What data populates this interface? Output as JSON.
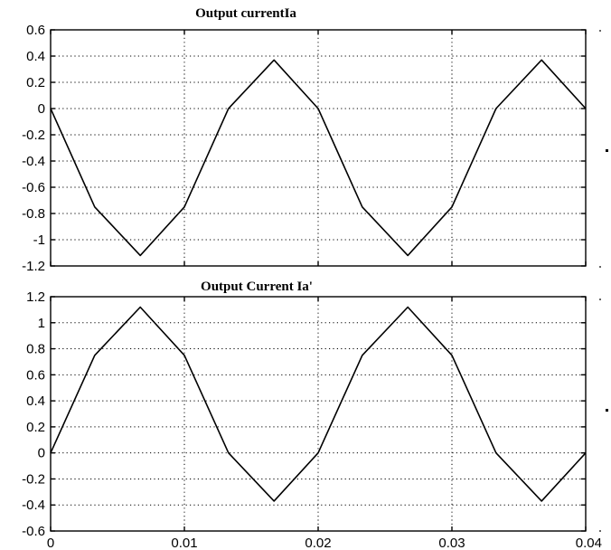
{
  "chart_data": [
    {
      "type": "line",
      "title": "Output currentIa",
      "xlabel": "",
      "ylabel": "",
      "xlim": [
        0,
        0.04
      ],
      "ylim": [
        -1.2,
        0.6
      ],
      "grid": true,
      "xticks": [
        0,
        0.01,
        0.02,
        0.03,
        0.04
      ],
      "xtick_labels": [
        "",
        "",
        "",
        "",
        ""
      ],
      "yticks": [
        0.6,
        0.4,
        0.2,
        0,
        -0.2,
        -0.4,
        -0.6,
        -0.8,
        -1,
        -1.2
      ],
      "ytick_labels": [
        "0.6",
        "0.4",
        "0.2",
        "0",
        "-0.2",
        "-0.4",
        "-0.6",
        "-0.8",
        "-1",
        "-1.2"
      ],
      "series": [
        {
          "x": [
            0,
            0.0033,
            0.0067,
            0.01,
            0.0133,
            0.0167,
            0.02,
            0.0233,
            0.0267,
            0.03,
            0.0333,
            0.0367,
            0.04
          ],
          "y": [
            0,
            -0.75,
            -1.12,
            -0.75,
            0,
            0.37,
            0,
            -0.75,
            -1.12,
            -0.75,
            0,
            0.37,
            0
          ]
        }
      ]
    },
    {
      "type": "line",
      "title": "Output Current Ia'",
      "xlabel": "",
      "ylabel": "",
      "xlim": [
        0,
        0.04
      ],
      "ylim": [
        -0.6,
        1.2
      ],
      "grid": true,
      "xticks": [
        0,
        0.01,
        0.02,
        0.03,
        0.04
      ],
      "xtick_labels": [
        "0",
        "0.01",
        "0.02",
        "0.03",
        "0.04"
      ],
      "yticks": [
        1.2,
        1,
        0.8,
        0.6,
        0.4,
        0.2,
        0,
        -0.2,
        -0.4,
        -0.6
      ],
      "ytick_labels": [
        "1.2",
        "1",
        "0.8",
        "0.6",
        "0.4",
        "0.2",
        "0",
        "-0.2",
        "-0.4",
        "-0.6"
      ],
      "series": [
        {
          "x": [
            0,
            0.0033,
            0.0067,
            0.01,
            0.0133,
            0.0167,
            0.02,
            0.0233,
            0.0267,
            0.03,
            0.0333,
            0.0367,
            0.04
          ],
          "y": [
            0,
            0.75,
            1.12,
            0.75,
            0,
            -0.37,
            0,
            0.75,
            1.12,
            0.75,
            0,
            -0.37,
            0
          ]
        }
      ]
    }
  ]
}
